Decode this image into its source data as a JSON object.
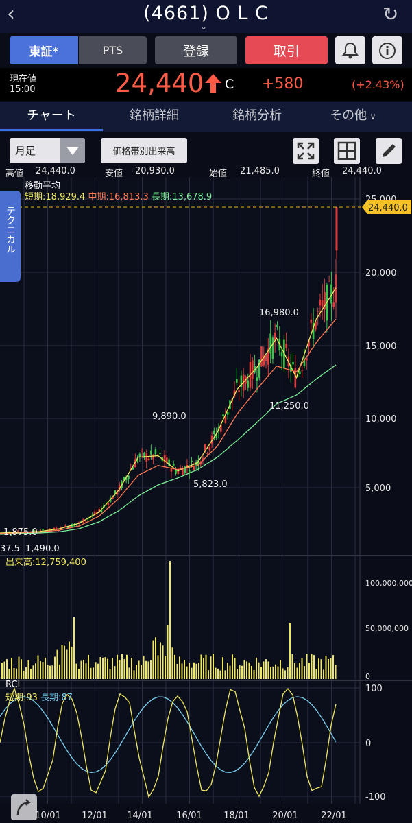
{
  "header": {
    "title": "(4661) O L C",
    "back_icon": "chevron-left-icon",
    "reload_icon": "reload-icon"
  },
  "market_tabs": {
    "tse": "東証*",
    "pts": "PTS"
  },
  "actions": {
    "register": "登録",
    "trade": "取引"
  },
  "price": {
    "label": "現在値",
    "time": "15:00",
    "value": "24,440",
    "mark": "C",
    "change": "+580",
    "change_pct": "(+2.43%)",
    "up_color": "#ff5a45"
  },
  "tabs": [
    "チャート",
    "銘柄詳細",
    "銘柄分析",
    "その他"
  ],
  "chart_toolbar": {
    "period": "月足",
    "volume_profile": "価格帯別出来高"
  },
  "ohlc": {
    "high_label": "高値",
    "high": "24,440.0",
    "low_label": "安値",
    "low": "20,930.0",
    "open_label": "始値",
    "open": "21,485.0",
    "close_label": "終値",
    "close": "24,440.0"
  },
  "side_tab": "テクニカル",
  "chart_data": {
    "type": "line",
    "title": "移動平均",
    "legend": {
      "short_label": "短期",
      "short": "18,929.4",
      "short_color": "#f0e860",
      "mid_label": "中期",
      "mid": "16,813.3",
      "mid_color": "#ff7a55",
      "long_label": "長期",
      "long": "13,678.9",
      "long_color": "#7ef09a"
    },
    "price_axis": {
      "ticks": [
        "25,000",
        "20,000",
        "15,000",
        "10,000",
        "5,000"
      ],
      "current": "24,440.0",
      "ylim": [
        0,
        26000
      ]
    },
    "x_ticks": [
      "10/01",
      "12/01",
      "14/01",
      "16/01",
      "18/01",
      "20/01",
      "22/01"
    ],
    "annotations": [
      "1,875.0",
      "37.5",
      "1,490.0",
      "9,890.0",
      "5,823.0",
      "16,980.0",
      "11,250.0"
    ],
    "series": [
      {
        "name": "短期",
        "values": [
          1700,
          1750,
          1800,
          2000,
          2400,
          3200,
          4800,
          7200,
          7300,
          6200,
          6800,
          9000,
          12000,
          13500,
          15500,
          12800,
          16800,
          18929
        ]
      },
      {
        "name": "中期",
        "values": [
          1650,
          1700,
          1750,
          1900,
          2200,
          2900,
          4200,
          5900,
          6600,
          6300,
          6600,
          8000,
          10300,
          12000,
          13600,
          13200,
          15200,
          16813
        ]
      },
      {
        "name": "長期",
        "values": [
          1600,
          1650,
          1700,
          1780,
          2000,
          2500,
          3300,
          4400,
          5200,
          5700,
          6300,
          7200,
          8400,
          9700,
          11000,
          11600,
          12700,
          13679
        ]
      }
    ],
    "volume": {
      "label": "出来高",
      "value": "12,759,400",
      "ticks": [
        "100,000,000",
        "50,000,000",
        "0"
      ]
    },
    "rci": {
      "label": "RCI",
      "short_label": "短期",
      "short": "93",
      "long_label": "長期",
      "long": "87",
      "ticks": [
        "100",
        "0",
        "-100"
      ]
    }
  }
}
